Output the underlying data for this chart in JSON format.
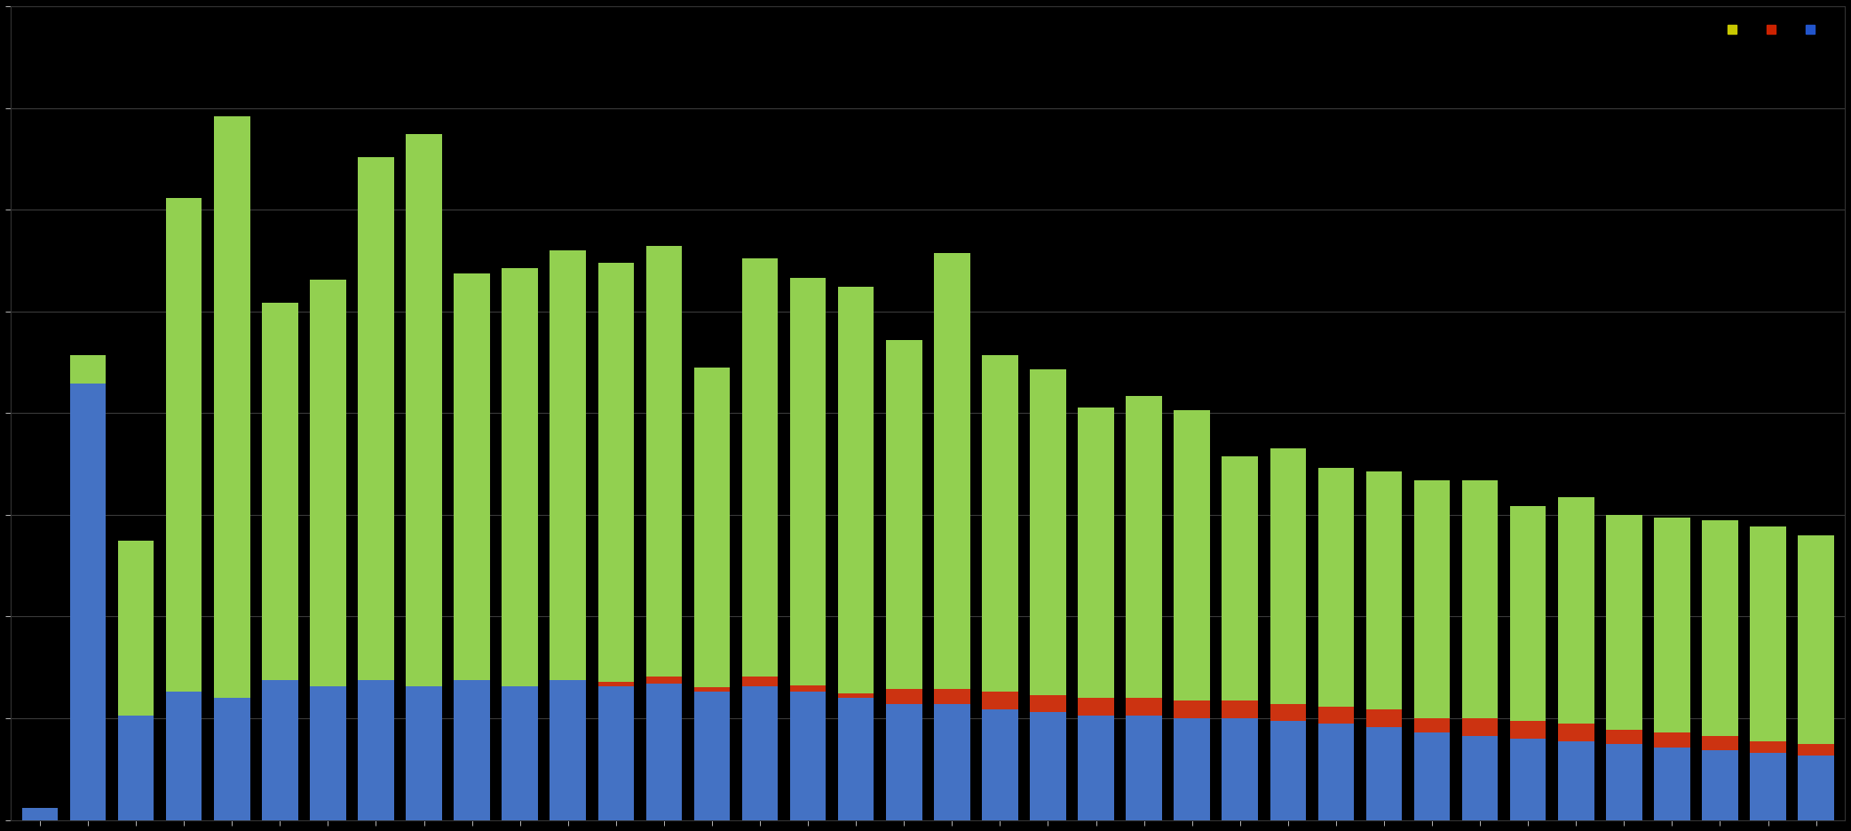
{
  "background_color": "#000000",
  "plot_bg_color": "#000000",
  "grid_color": "#3a3a3a",
  "bar_width": 0.75,
  "legend_markers": [
    "#c8c800",
    "#cc2200",
    "#2255cc"
  ],
  "blue_values": [
    200,
    7500,
    1800,
    2200,
    2100,
    2400,
    2300,
    2400,
    2300,
    2400,
    2300,
    2400,
    2300,
    2350,
    2200,
    2300,
    2200,
    2100,
    2000,
    2000,
    1900,
    1850,
    1800,
    1800,
    1750,
    1750,
    1700,
    1650,
    1600,
    1500,
    1450,
    1400,
    1350,
    1300,
    1250,
    1200,
    1150,
    1100
  ],
  "red_values": [
    0,
    0,
    0,
    0,
    0,
    0,
    0,
    0,
    0,
    0,
    0,
    0,
    80,
    120,
    80,
    160,
    120,
    80,
    250,
    250,
    300,
    300,
    300,
    300,
    300,
    300,
    300,
    300,
    300,
    250,
    300,
    300,
    300,
    250,
    250,
    250,
    200,
    200
  ],
  "green_values": [
    0,
    500,
    3000,
    8500,
    10000,
    6500,
    7000,
    9000,
    9500,
    7000,
    7200,
    7400,
    7200,
    7400,
    5500,
    7200,
    7000,
    7000,
    6000,
    7500,
    5800,
    5600,
    5000,
    5200,
    5000,
    4200,
    4400,
    4100,
    4100,
    4100,
    4100,
    3700,
    3900,
    3700,
    3700,
    3700,
    3700,
    3600
  ],
  "ylim_max": 14000,
  "show_yticklabels": false
}
